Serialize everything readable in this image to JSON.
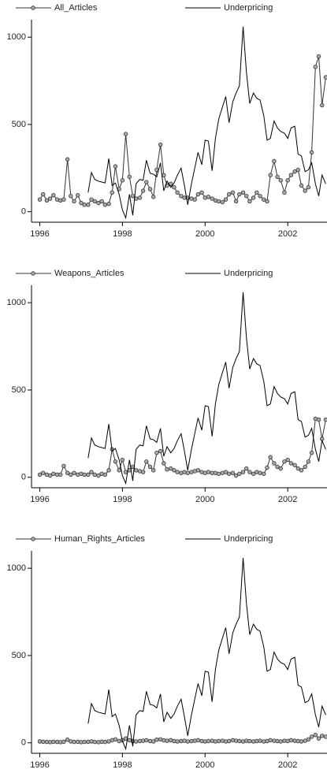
{
  "chart_data": [
    {
      "type": "line",
      "x": [
        1996,
        1996.08,
        1996.17,
        1996.25,
        1996.33,
        1996.42,
        1996.5,
        1996.58,
        1996.67,
        1996.75,
        1996.83,
        1996.92,
        1997,
        1997.08,
        1997.17,
        1997.25,
        1997.33,
        1997.42,
        1997.5,
        1997.58,
        1997.67,
        1997.75,
        1997.83,
        1997.92,
        1998,
        1998.08,
        1998.17,
        1998.25,
        1998.33,
        1998.42,
        1998.5,
        1998.58,
        1998.67,
        1998.75,
        1998.83,
        1998.92,
        1999,
        1999.08,
        1999.17,
        1999.25,
        1999.33,
        1999.42,
        1999.5,
        1999.58,
        1999.67,
        1999.75,
        1999.83,
        1999.92,
        2000,
        2000.08,
        2000.17,
        2000.25,
        2000.33,
        2000.42,
        2000.5,
        2000.58,
        2000.67,
        2000.75,
        2000.83,
        2000.92,
        2001,
        2001.08,
        2001.17,
        2001.25,
        2001.33,
        2001.42,
        2001.5,
        2001.58,
        2001.67,
        2001.75,
        2001.83,
        2001.92,
        2002,
        2002.08,
        2002.17,
        2002.25,
        2002.33,
        2002.42,
        2002.5,
        2002.58,
        2002.67,
        2002.75,
        2002.83,
        2002.92
      ],
      "series": [
        {
          "name": "All_Articles",
          "color": "#555555",
          "markers": true,
          "values": [
            70,
            100,
            65,
            75,
            95,
            70,
            65,
            70,
            300,
            90,
            60,
            95,
            50,
            40,
            40,
            70,
            60,
            50,
            60,
            40,
            45,
            110,
            260,
            130,
            180,
            445,
            200,
            90,
            75,
            80,
            120,
            170,
            130,
            85,
            240,
            385,
            210,
            150,
            160,
            140,
            110,
            90,
            80,
            80,
            75,
            70,
            100,
            110,
            80,
            85,
            75,
            65,
            60,
            55,
            70,
            100,
            110,
            60,
            100,
            110,
            90,
            60,
            80,
            110,
            90,
            70,
            60,
            210,
            290,
            200,
            180,
            110,
            180,
            210,
            230,
            240,
            150,
            120,
            140,
            340,
            830,
            890,
            610,
            770
          ]
        },
        {
          "name": "Underpricing",
          "color": "#000000",
          "markers": false,
          "values": [
            null,
            null,
            null,
            null,
            null,
            null,
            null,
            null,
            null,
            null,
            null,
            null,
            null,
            null,
            110,
            225,
            185,
            175,
            170,
            165,
            305,
            150,
            165,
            100,
            10,
            -35,
            100,
            -20,
            160,
            185,
            180,
            295,
            220,
            215,
            200,
            280,
            120,
            175,
            140,
            165,
            210,
            250,
            150,
            40,
            160,
            250,
            340,
            270,
            410,
            405,
            235,
            420,
            530,
            600,
            660,
            510,
            630,
            680,
            720,
            1060,
            800,
            620,
            680,
            650,
            640,
            550,
            410,
            420,
            520,
            480,
            460,
            450,
            420,
            480,
            490,
            330,
            320,
            230,
            240,
            280,
            160,
            90,
            210,
            160
          ]
        }
      ],
      "xlim": [
        1995.8,
        2002.95
      ],
      "xticks": [
        1996,
        1998,
        2000,
        2002
      ],
      "ylim": [
        -60,
        1100
      ],
      "yticks": [
        0,
        500,
        1000
      ]
    },
    {
      "type": "line",
      "x": [
        1996,
        1996.08,
        1996.17,
        1996.25,
        1996.33,
        1996.42,
        1996.5,
        1996.58,
        1996.67,
        1996.75,
        1996.83,
        1996.92,
        1997,
        1997.08,
        1997.17,
        1997.25,
        1997.33,
        1997.42,
        1997.5,
        1997.58,
        1997.67,
        1997.75,
        1997.83,
        1997.92,
        1998,
        1998.08,
        1998.17,
        1998.25,
        1998.33,
        1998.42,
        1998.5,
        1998.58,
        1998.67,
        1998.75,
        1998.83,
        1998.92,
        1999,
        1999.08,
        1999.17,
        1999.25,
        1999.33,
        1999.42,
        1999.5,
        1999.58,
        1999.67,
        1999.75,
        1999.83,
        1999.92,
        2000,
        2000.08,
        2000.17,
        2000.25,
        2000.33,
        2000.42,
        2000.5,
        2000.58,
        2000.67,
        2000.75,
        2000.83,
        2000.92,
        2001,
        2001.08,
        2001.17,
        2001.25,
        2001.33,
        2001.42,
        2001.5,
        2001.58,
        2001.67,
        2001.75,
        2001.83,
        2001.92,
        2002,
        2002.08,
        2002.17,
        2002.25,
        2002.33,
        2002.42,
        2002.5,
        2002.58,
        2002.67,
        2002.75,
        2002.83,
        2002.92
      ],
      "series": [
        {
          "name": "Weapons_Articles",
          "color": "#555555",
          "markers": true,
          "values": [
            15,
            25,
            15,
            10,
            20,
            15,
            15,
            65,
            25,
            15,
            25,
            15,
            20,
            15,
            15,
            30,
            15,
            10,
            20,
            15,
            40,
            160,
            90,
            40,
            100,
            30,
            40,
            60,
            40,
            35,
            30,
            90,
            60,
            40,
            140,
            150,
            80,
            45,
            50,
            40,
            30,
            25,
            30,
            25,
            30,
            35,
            40,
            30,
            25,
            30,
            25,
            25,
            20,
            25,
            30,
            20,
            25,
            10,
            20,
            30,
            50,
            30,
            20,
            30,
            25,
            20,
            55,
            115,
            80,
            60,
            50,
            90,
            100,
            80,
            70,
            50,
            40,
            60,
            90,
            140,
            335,
            330,
            220,
            330
          ]
        },
        {
          "name": "Underpricing",
          "color": "#000000",
          "markers": false,
          "values": [
            null,
            null,
            null,
            null,
            null,
            null,
            null,
            null,
            null,
            null,
            null,
            null,
            null,
            null,
            110,
            225,
            185,
            175,
            170,
            165,
            305,
            150,
            165,
            100,
            10,
            -35,
            100,
            -20,
            160,
            185,
            180,
            295,
            220,
            215,
            200,
            280,
            120,
            175,
            140,
            165,
            210,
            250,
            150,
            40,
            160,
            250,
            340,
            270,
            410,
            405,
            235,
            420,
            530,
            600,
            660,
            510,
            630,
            680,
            720,
            1060,
            800,
            620,
            680,
            650,
            640,
            550,
            410,
            420,
            520,
            480,
            460,
            450,
            420,
            480,
            490,
            330,
            320,
            230,
            240,
            280,
            160,
            90,
            210,
            160
          ]
        }
      ],
      "xlim": [
        1995.8,
        2002.95
      ],
      "xticks": [
        1996,
        1998,
        2000,
        2002
      ],
      "ylim": [
        -60,
        1100
      ],
      "yticks": [
        0,
        500,
        1000
      ]
    },
    {
      "type": "line",
      "x": [
        1996,
        1996.08,
        1996.17,
        1996.25,
        1996.33,
        1996.42,
        1996.5,
        1996.58,
        1996.67,
        1996.75,
        1996.83,
        1996.92,
        1997,
        1997.08,
        1997.17,
        1997.25,
        1997.33,
        1997.42,
        1997.5,
        1997.58,
        1997.67,
        1997.75,
        1997.83,
        1997.92,
        1998,
        1998.08,
        1998.17,
        1998.25,
        1998.33,
        1998.42,
        1998.5,
        1998.58,
        1998.67,
        1998.75,
        1998.83,
        1998.92,
        1999,
        1999.08,
        1999.17,
        1999.25,
        1999.33,
        1999.42,
        1999.5,
        1999.58,
        1999.67,
        1999.75,
        1999.83,
        1999.92,
        2000,
        2000.08,
        2000.17,
        2000.25,
        2000.33,
        2000.42,
        2000.5,
        2000.58,
        2000.67,
        2000.75,
        2000.83,
        2000.92,
        2001,
        2001.08,
        2001.17,
        2001.25,
        2001.33,
        2001.42,
        2001.5,
        2001.58,
        2001.67,
        2001.75,
        2001.83,
        2001.92,
        2002,
        2002.08,
        2002.17,
        2002.25,
        2002.33,
        2002.42,
        2002.5,
        2002.58,
        2002.67,
        2002.75,
        2002.83,
        2002.92
      ],
      "series": [
        {
          "name": "Human_Rights_Articles",
          "color": "#555555",
          "markers": true,
          "values": [
            8,
            6,
            5,
            4,
            6,
            5,
            4,
            6,
            18,
            8,
            5,
            6,
            4,
            5,
            6,
            8,
            5,
            4,
            6,
            5,
            8,
            15,
            20,
            10,
            15,
            25,
            15,
            10,
            8,
            10,
            12,
            15,
            10,
            8,
            18,
            20,
            14,
            12,
            15,
            10,
            8,
            10,
            12,
            8,
            10,
            12,
            15,
            10,
            8,
            10,
            12,
            8,
            10,
            12,
            8,
            10,
            15,
            12,
            10,
            8,
            12,
            10,
            8,
            10,
            12,
            8,
            10,
            15,
            12,
            10,
            8,
            12,
            10,
            15,
            12,
            10,
            8,
            12,
            20,
            35,
            45,
            25,
            40,
            35
          ]
        },
        {
          "name": "Underpricing",
          "color": "#000000",
          "markers": false,
          "values": [
            null,
            null,
            null,
            null,
            null,
            null,
            null,
            null,
            null,
            null,
            null,
            null,
            null,
            null,
            110,
            225,
            185,
            175,
            170,
            165,
            305,
            150,
            165,
            100,
            10,
            -35,
            100,
            -20,
            160,
            185,
            180,
            295,
            220,
            215,
            200,
            280,
            120,
            175,
            140,
            165,
            210,
            250,
            150,
            40,
            160,
            250,
            340,
            270,
            410,
            405,
            235,
            420,
            530,
            600,
            660,
            510,
            630,
            680,
            720,
            1060,
            800,
            620,
            680,
            650,
            640,
            550,
            410,
            420,
            520,
            480,
            460,
            450,
            420,
            480,
            490,
            330,
            320,
            230,
            240,
            280,
            160,
            90,
            210,
            160
          ]
        }
      ],
      "xlim": [
        1995.8,
        2002.95
      ],
      "xticks": [
        1996,
        1998,
        2000,
        2002
      ],
      "ylim": [
        -60,
        1100
      ],
      "yticks": [
        0,
        500,
        1000
      ]
    }
  ]
}
